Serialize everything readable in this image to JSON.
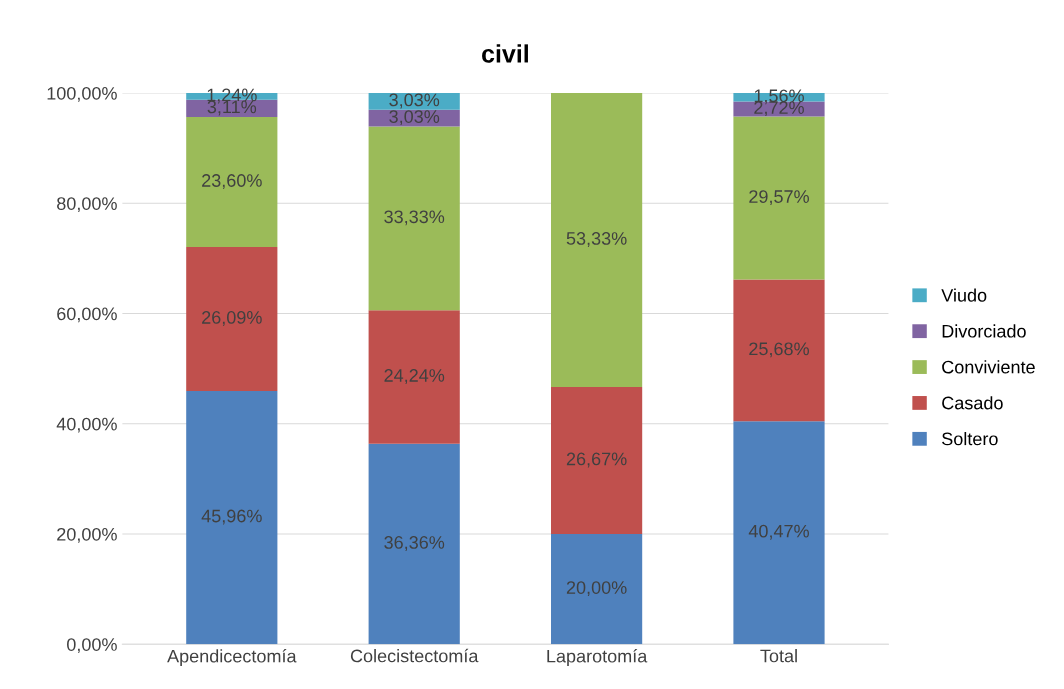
{
  "chart_data": {
    "type": "bar",
    "title": "civil",
    "stacked": true,
    "categories": [
      "Apendicectomía",
      "Colecistectomía",
      "Laparotomía",
      "Total"
    ],
    "series": [
      {
        "name": "Soltero",
        "color": "#4f81bd",
        "values": [
          45.96,
          36.36,
          20.0,
          40.47
        ],
        "value_labels": [
          "45,96%",
          "36,36%",
          "20,00%",
          "40,47%"
        ]
      },
      {
        "name": "Casado",
        "color": "#c0504d",
        "values": [
          26.09,
          24.24,
          26.67,
          25.68
        ],
        "value_labels": [
          "26,09%",
          "24,24%",
          "26,67%",
          "25,68%"
        ]
      },
      {
        "name": "Conviviente",
        "color": "#9bbb59",
        "values": [
          23.6,
          33.33,
          53.33,
          29.57
        ],
        "value_labels": [
          "23,60%",
          "33,33%",
          "53,33%",
          "29,57%"
        ]
      },
      {
        "name": "Divorciado",
        "color": "#8064a2",
        "values": [
          3.11,
          3.03,
          0,
          2.72
        ],
        "value_labels": [
          "3,11%",
          "3,03%",
          null,
          "2,72%"
        ]
      },
      {
        "name": "Viudo",
        "color": "#4bacc6",
        "values": [
          1.24,
          3.03,
          0,
          1.56
        ],
        "value_labels": [
          "1,24%",
          "3,03%",
          null,
          "1,56%"
        ]
      }
    ],
    "ylim": [
      0,
      100
    ],
    "yticks": [
      {
        "value": 0,
        "label": "0,00%"
      },
      {
        "value": 20,
        "label": "20,00%"
      },
      {
        "value": 40,
        "label": "40,00%"
      },
      {
        "value": 60,
        "label": "60,00%"
      },
      {
        "value": 80,
        "label": "80,00%"
      },
      {
        "value": 100,
        "label": "100,00%"
      }
    ],
    "grid": "y",
    "legend": "right"
  }
}
